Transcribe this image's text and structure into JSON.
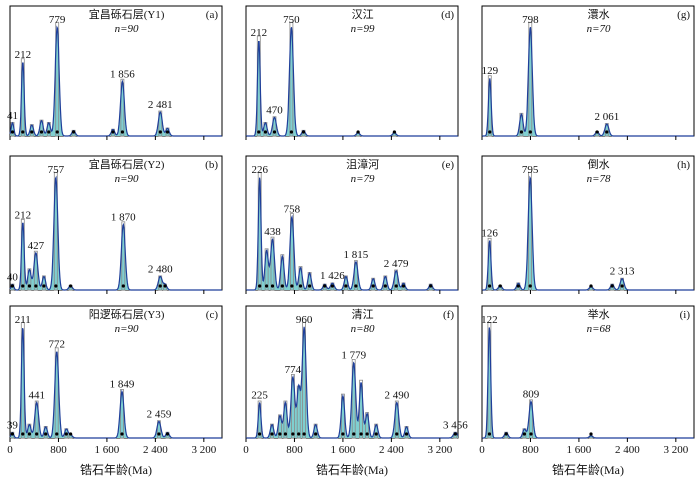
{
  "figure": {
    "xlabel": "锆石年龄(Ma)"
  },
  "colors": {
    "fill": "#7fcfd0",
    "curve": "#1f3f9a",
    "histogram": "#8a8a8a",
    "axis": "#000000"
  },
  "chart_data": [
    {
      "type": "area",
      "panel": "(a)",
      "title": "宜昌砾石层(Y1)",
      "n_label": "n=90",
      "xlim": [
        0,
        3500
      ],
      "xticks": [
        "0",
        "800",
        "1 600",
        "2 400",
        "3 200"
      ],
      "xlabel": "锆石年龄(Ma)",
      "peaks": [
        {
          "age": 41,
          "label": "41",
          "h": 0.12
        },
        {
          "age": 212,
          "label": "212",
          "h": 0.68
        },
        {
          "age": 779,
          "label": "779",
          "h": 1.0
        },
        {
          "age": 1856,
          "label": "1 856",
          "h": 0.5
        },
        {
          "age": 2481,
          "label": "2 481",
          "h": 0.22
        }
      ],
      "minor": [
        {
          "age": 360,
          "h": 0.1
        },
        {
          "age": 520,
          "h": 0.14
        },
        {
          "age": 640,
          "h": 0.12
        },
        {
          "age": 1050,
          "h": 0.05
        },
        {
          "age": 1700,
          "h": 0.06
        },
        {
          "age": 2600,
          "h": 0.07
        }
      ]
    },
    {
      "type": "area",
      "panel": "(b)",
      "title": "宜昌砾石层(Y2)",
      "n_label": "n=90",
      "xlim": [
        0,
        3500
      ],
      "xticks": [
        "0",
        "800",
        "1 600",
        "2 400",
        "3 200"
      ],
      "xlabel": "锆石年龄(Ma)",
      "peaks": [
        {
          "age": 40,
          "label": "40",
          "h": 0.05
        },
        {
          "age": 212,
          "label": "212",
          "h": 0.6
        },
        {
          "age": 427,
          "label": "427",
          "h": 0.33
        },
        {
          "age": 757,
          "label": "757",
          "h": 1.0
        },
        {
          "age": 1870,
          "label": "1 870",
          "h": 0.58
        },
        {
          "age": 2480,
          "label": "2 480",
          "h": 0.12
        }
      ],
      "minor": [
        {
          "age": 320,
          "h": 0.18
        },
        {
          "age": 560,
          "h": 0.12
        },
        {
          "age": 1000,
          "h": 0.04
        },
        {
          "age": 2560,
          "h": 0.05
        }
      ]
    },
    {
      "type": "area",
      "panel": "(c)",
      "title": "阳逻砾石层(Y3)",
      "n_label": "n=90",
      "xlim": [
        0,
        3500
      ],
      "xticks": [
        "0",
        "800",
        "1 600",
        "2 400",
        "3 200"
      ],
      "xlabel": "锆石年龄(Ma)",
      "peaks": [
        {
          "age": 39,
          "label": "39",
          "h": 0.05
        },
        {
          "age": 211,
          "label": "211",
          "h": 1.0
        },
        {
          "age": 441,
          "label": "441",
          "h": 0.32
        },
        {
          "age": 772,
          "label": "772",
          "h": 0.78
        },
        {
          "age": 1849,
          "label": "1 849",
          "h": 0.42
        },
        {
          "age": 2459,
          "label": "2 459",
          "h": 0.15
        }
      ],
      "minor": [
        {
          "age": 320,
          "h": 0.12
        },
        {
          "age": 590,
          "h": 0.1
        },
        {
          "age": 930,
          "h": 0.08
        },
        {
          "age": 1000,
          "h": 0.03
        },
        {
          "age": 2600,
          "h": 0.05
        }
      ]
    },
    {
      "type": "area",
      "panel": "(d)",
      "title": "汉江",
      "n_label": "n=99",
      "xlim": [
        0,
        3500
      ],
      "xticks": [
        "0",
        "800",
        "1 600",
        "2 400",
        "3 200"
      ],
      "xlabel": "锆石年龄(Ma)",
      "peaks": [
        {
          "age": 212,
          "label": "212",
          "h": 0.88
        },
        {
          "age": 470,
          "label": "470",
          "h": 0.17
        },
        {
          "age": 750,
          "label": "750",
          "h": 1.0
        }
      ],
      "minor": [
        {
          "age": 320,
          "h": 0.12
        },
        {
          "age": 950,
          "h": 0.05
        },
        {
          "age": 1850,
          "h": 0.03
        },
        {
          "age": 2450,
          "h": 0.03
        }
      ]
    },
    {
      "type": "area",
      "panel": "(e)",
      "title": "沮漳河",
      "n_label": "n=79",
      "xlim": [
        0,
        3500
      ],
      "xticks": [
        "0",
        "800",
        "1 600",
        "2 400",
        "3 200"
      ],
      "xlabel": "锆石年龄(Ma)",
      "peaks": [
        {
          "age": 226,
          "label": "226",
          "h": 1.0
        },
        {
          "age": 438,
          "label": "438",
          "h": 0.45
        },
        {
          "age": 758,
          "label": "758",
          "h": 0.65
        },
        {
          "age": 1426,
          "label": "1 426",
          "h": 0.06
        },
        {
          "age": 1815,
          "label": "1 815",
          "h": 0.25
        },
        {
          "age": 2479,
          "label": "2 479",
          "h": 0.17
        }
      ],
      "minor": [
        {
          "age": 340,
          "h": 0.35
        },
        {
          "age": 600,
          "h": 0.3
        },
        {
          "age": 900,
          "h": 0.2
        },
        {
          "age": 1050,
          "h": 0.15
        },
        {
          "age": 1300,
          "h": 0.05
        },
        {
          "age": 1650,
          "h": 0.12
        },
        {
          "age": 2100,
          "h": 0.1
        },
        {
          "age": 2300,
          "h": 0.12
        },
        {
          "age": 2600,
          "h": 0.06
        },
        {
          "age": 3050,
          "h": 0.05
        }
      ]
    },
    {
      "type": "area",
      "panel": "(f)",
      "title": "清江",
      "n_label": "n=80",
      "xlim": [
        0,
        3500
      ],
      "xticks": [
        "0",
        "800",
        "1 600",
        "2 400",
        "3 200"
      ],
      "xlabel": "锆石年龄(Ma)",
      "peaks": [
        {
          "age": 225,
          "label": "225",
          "h": 0.32
        },
        {
          "age": 774,
          "label": "774",
          "h": 0.55
        },
        {
          "age": 960,
          "label": "960",
          "h": 1.0
        },
        {
          "age": 1779,
          "label": "1 779",
          "h": 0.68
        },
        {
          "age": 2490,
          "label": "2 490",
          "h": 0.32
        },
        {
          "age": 3456,
          "label": "3 456",
          "h": 0.05
        }
      ],
      "minor": [
        {
          "age": 430,
          "h": 0.12
        },
        {
          "age": 560,
          "h": 0.2
        },
        {
          "age": 650,
          "h": 0.32
        },
        {
          "age": 870,
          "h": 0.45
        },
        {
          "age": 1150,
          "h": 0.12
        },
        {
          "age": 1600,
          "h": 0.38
        },
        {
          "age": 1900,
          "h": 0.5
        },
        {
          "age": 2000,
          "h": 0.22
        },
        {
          "age": 2150,
          "h": 0.12
        },
        {
          "age": 2650,
          "h": 0.1
        }
      ]
    },
    {
      "type": "area",
      "panel": "(g)",
      "title": "澴水",
      "n_label": "n=70",
      "xlim": [
        0,
        3500
      ],
      "xticks": [
        "0",
        "800",
        "1 600",
        "2 400",
        "3 200"
      ],
      "xlabel": "锆石年龄(Ma)",
      "peaks": [
        {
          "age": 129,
          "label": "129",
          "h": 0.53
        },
        {
          "age": 798,
          "label": "798",
          "h": 1.0
        },
        {
          "age": 2061,
          "label": "2 061",
          "h": 0.11
        }
      ],
      "minor": [
        {
          "age": 650,
          "h": 0.2
        },
        {
          "age": 1900,
          "h": 0.04
        }
      ]
    },
    {
      "type": "area",
      "panel": "(h)",
      "title": "倒水",
      "n_label": "n=78",
      "xlim": [
        0,
        3500
      ],
      "xticks": [
        "0",
        "800",
        "1 600",
        "2 400",
        "3 200"
      ],
      "xlabel": "锆石年龄(Ma)",
      "peaks": [
        {
          "age": 126,
          "label": "126",
          "h": 0.44
        },
        {
          "age": 795,
          "label": "795",
          "h": 1.0
        },
        {
          "age": 2313,
          "label": "2 313",
          "h": 0.1
        }
      ],
      "minor": [
        {
          "age": 300,
          "h": 0.04
        },
        {
          "age": 600,
          "h": 0.06
        },
        {
          "age": 1800,
          "h": 0.03
        },
        {
          "age": 2150,
          "h": 0.05
        }
      ]
    },
    {
      "type": "area",
      "panel": "(i)",
      "title": "举水",
      "n_label": "n=68",
      "xlim": [
        0,
        3500
      ],
      "xticks": [
        "0",
        "800",
        "1 600",
        "2 400",
        "3 200"
      ],
      "xlabel": "锆石年龄(Ma)",
      "peaks": [
        {
          "age": 122,
          "label": "122",
          "h": 1.0
        },
        {
          "age": 809,
          "label": "809",
          "h": 0.33
        }
      ],
      "minor": [
        {
          "age": 400,
          "h": 0.05
        },
        {
          "age": 700,
          "h": 0.08
        },
        {
          "age": 1800,
          "h": 0.02
        }
      ]
    }
  ]
}
